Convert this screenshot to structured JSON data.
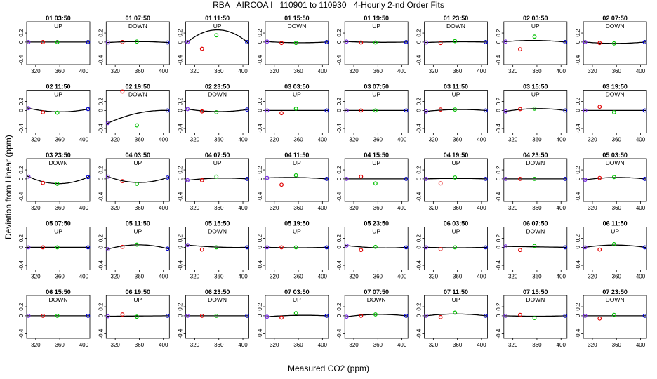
{
  "figure": {
    "title": "RBA   AIRCOA I   110901 to 110930   4-Hourly 2-nd Order Fits",
    "xlabel": "Measured CO2 (ppm)",
    "ylabel": "Deviation from Linear (ppm)"
  },
  "chart_data": {
    "type": "scatter",
    "layout": "5x8 small multiples",
    "xlim": [
      305,
      410
    ],
    "ylim": [
      -0.5,
      0.45
    ],
    "xticks": [
      320,
      360,
      400
    ],
    "yticks": [
      -0.4,
      0.0,
      0.2
    ],
    "ytick_labels": [
      "-0.4",
      "0",
      "0.2"
    ],
    "colors": {
      "s1": "#7a2ee6",
      "s2": "#e00000",
      "s3": "#00c000",
      "s4": "#0000cc",
      "fit": "#000000"
    },
    "x_standards": [
      308,
      332,
      356,
      407
    ],
    "panels": [
      {
        "title": "01 03:50",
        "dir": "UP",
        "y": [
          0.0,
          0.0,
          0.0,
          0.0
        ],
        "k": 0.0
      },
      {
        "title": "01 07:50",
        "dir": "DOWN",
        "y": [
          -0.01,
          0.0,
          0.01,
          -0.01
        ],
        "k": 0.02
      },
      {
        "title": "01 11:50",
        "dir": "UP",
        "y": [
          0.0,
          -0.15,
          0.15,
          0.0
        ],
        "k": 0.27
      },
      {
        "title": "01 15:50",
        "dir": "DOWN",
        "y": [
          0.01,
          -0.02,
          -0.02,
          0.0
        ],
        "k": -0.02
      },
      {
        "title": "01 19:50",
        "dir": "UP",
        "y": [
          0.01,
          -0.01,
          -0.01,
          0.0
        ],
        "k": -0.01
      },
      {
        "title": "01 23:50",
        "dir": "DOWN",
        "y": [
          -0.01,
          -0.02,
          0.02,
          0.0
        ],
        "k": 0.01
      },
      {
        "title": "02 03:50",
        "dir": "UP",
        "y": [
          0.01,
          -0.16,
          0.12,
          0.0
        ],
        "k": 0.03
      },
      {
        "title": "02 07:50",
        "dir": "DOWN",
        "y": [
          0.0,
          -0.02,
          -0.03,
          0.0
        ],
        "k": -0.03
      },
      {
        "title": "02 11:50",
        "dir": "UP",
        "y": [
          0.05,
          -0.04,
          -0.05,
          0.03
        ],
        "k": -0.07
      },
      {
        "title": "02 19:50",
        "dir": "DOWN",
        "y": [
          -0.28,
          0.42,
          -0.33,
          0.0
        ],
        "k": 0.08
      },
      {
        "title": "02 23:50",
        "dir": "DOWN",
        "y": [
          0.03,
          -0.02,
          -0.04,
          0.02
        ],
        "k": -0.05
      },
      {
        "title": "03 03:50",
        "dir": "UP",
        "y": [
          0.0,
          -0.06,
          0.04,
          0.0
        ],
        "k": 0.0
      },
      {
        "title": "03 07:50",
        "dir": "UP",
        "y": [
          0.0,
          0.0,
          0.0,
          0.0
        ],
        "k": 0.0
      },
      {
        "title": "03 11:50",
        "dir": "UP",
        "y": [
          -0.02,
          0.02,
          0.02,
          0.0
        ],
        "k": 0.03
      },
      {
        "title": "03 15:50",
        "dir": "UP",
        "y": [
          -0.02,
          0.03,
          0.04,
          0.0
        ],
        "k": 0.05
      },
      {
        "title": "03 19:50",
        "dir": "DOWN",
        "y": [
          0.0,
          0.08,
          -0.04,
          0.0
        ],
        "k": 0.0
      },
      {
        "title": "03 23:50",
        "dir": "DOWN",
        "y": [
          0.05,
          -0.09,
          -0.11,
          0.04
        ],
        "k": -0.15
      },
      {
        "title": "04 03:50",
        "dir": "UP",
        "y": [
          0.05,
          -0.05,
          -0.11,
          0.03
        ],
        "k": -0.12
      },
      {
        "title": "04 07:50",
        "dir": "UP",
        "y": [
          -0.03,
          -0.03,
          0.05,
          0.0
        ],
        "k": 0.03
      },
      {
        "title": "04 11:50",
        "dir": "UP",
        "y": [
          0.02,
          -0.13,
          0.08,
          0.0
        ],
        "k": 0.02
      },
      {
        "title": "04 15:50",
        "dir": "UP",
        "y": [
          0.0,
          0.05,
          -0.1,
          0.0
        ],
        "k": 0.0
      },
      {
        "title": "04 19:50",
        "dir": "UP",
        "y": [
          0.0,
          -0.1,
          0.03,
          0.0
        ],
        "k": 0.01
      },
      {
        "title": "04 23:50",
        "dir": "DOWN",
        "y": [
          0.0,
          0.0,
          0.0,
          0.0
        ],
        "k": 0.0
      },
      {
        "title": "05 03:50",
        "dir": "DOWN",
        "y": [
          -0.02,
          0.02,
          0.04,
          0.0
        ],
        "k": 0.04
      },
      {
        "title": "05 07:50",
        "dir": "UP",
        "y": [
          0.0,
          0.0,
          0.0,
          0.0
        ],
        "k": 0.0
      },
      {
        "title": "05 11:50",
        "dir": "UP",
        "y": [
          -0.04,
          0.01,
          0.06,
          -0.03
        ],
        "k": 0.09
      },
      {
        "title": "05 15:50",
        "dir": "DOWN",
        "y": [
          0.05,
          -0.05,
          0.0,
          0.0
        ],
        "k": -0.02
      },
      {
        "title": "05 19:50",
        "dir": "UP",
        "y": [
          0.0,
          0.0,
          0.0,
          0.0
        ],
        "k": -0.01
      },
      {
        "title": "05 23:50",
        "dir": "UP",
        "y": [
          0.04,
          -0.06,
          0.01,
          0.0
        ],
        "k": -0.03
      },
      {
        "title": "06 03:50",
        "dir": "UP",
        "y": [
          0.0,
          -0.04,
          0.0,
          0.0
        ],
        "k": -0.01
      },
      {
        "title": "06 07:50",
        "dir": "DOWN",
        "y": [
          0.02,
          -0.06,
          0.03,
          0.0
        ],
        "k": 0.0
      },
      {
        "title": "06 11:50",
        "dir": "UP",
        "y": [
          0.0,
          -0.05,
          0.07,
          0.0
        ],
        "k": 0.05
      },
      {
        "title": "06 15:50",
        "dir": "DOWN",
        "y": [
          0.0,
          0.0,
          0.0,
          0.0
        ],
        "k": 0.0
      },
      {
        "title": "06 19:50",
        "dir": "UP",
        "y": [
          -0.01,
          0.03,
          -0.02,
          0.0
        ],
        "k": 0.0
      },
      {
        "title": "06 23:50",
        "dir": "DOWN",
        "y": [
          0.0,
          0.0,
          0.0,
          0.0
        ],
        "k": 0.0
      },
      {
        "title": "07 03:50",
        "dir": "UP",
        "y": [
          -0.02,
          -0.04,
          0.06,
          0.0
        ],
        "k": 0.02
      },
      {
        "title": "07 07:50",
        "dir": "DOWN",
        "y": [
          -0.02,
          0.0,
          0.03,
          0.0
        ],
        "k": 0.04
      },
      {
        "title": "07 11:50",
        "dir": "UP",
        "y": [
          0.0,
          -0.03,
          0.07,
          0.0
        ],
        "k": 0.04
      },
      {
        "title": "07 15:50",
        "dir": "DOWN",
        "y": [
          0.0,
          0.02,
          -0.05,
          0.0
        ],
        "k": -0.01
      },
      {
        "title": "07 23:50",
        "dir": "DOWN",
        "y": [
          0.0,
          -0.06,
          0.02,
          0.0
        ],
        "k": 0.0
      }
    ]
  }
}
